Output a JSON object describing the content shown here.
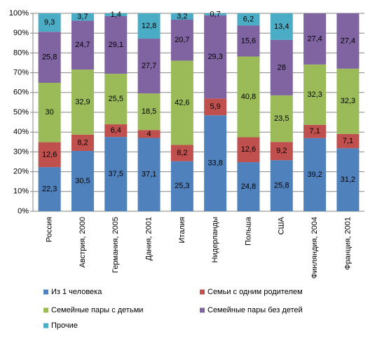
{
  "chart_data": {
    "type": "bar",
    "stack": "percent",
    "categories": [
      "Россия",
      "Австрия, 2000",
      "Германия, 2005",
      "Дания, 2001",
      "Италия",
      "Нидерланды",
      "Польша",
      "США",
      "Финляндия, 2004",
      "Франция, 2001"
    ],
    "series": [
      {
        "name": "Из 1 человека",
        "color": "#4f81bd",
        "values": [
          22.3,
          30.5,
          37.5,
          37.1,
          25.3,
          33.8,
          24.8,
          25.8,
          39.2,
          31.2
        ],
        "value_labels": [
          "22,3",
          "30,5",
          "37,5",
          "37,1",
          "25,3",
          "33,8",
          "24,8",
          "25,8",
          "39,2",
          "31,2"
        ]
      },
      {
        "name": "Семьи с одним родителем",
        "color": "#c0504d",
        "values": [
          12.6,
          8.2,
          6.4,
          4,
          8.2,
          5.9,
          12.6,
          9.2,
          7.1,
          7.1
        ],
        "value_labels": [
          "12,6",
          "8,2",
          "6,4",
          "4",
          "8,2",
          "5,9",
          "12,6",
          "9,2",
          "7,1",
          "7,1"
        ]
      },
      {
        "name": "Семейные пары с детьми",
        "color": "#9bbb59",
        "values": [
          30,
          32.9,
          25.5,
          18.5,
          42.6,
          null,
          40.8,
          23.5,
          32.3,
          32.3
        ],
        "value_labels": [
          "30",
          "32,9",
          "25,5",
          "18,5",
          "42,6",
          null,
          "40,8",
          "23,5",
          "32,3",
          "32,3"
        ]
      },
      {
        "name": "Семейные пары без детей",
        "color": "#8064a2",
        "values": [
          25.8,
          24.7,
          29.1,
          27.7,
          20.7,
          29.3,
          15.6,
          28,
          27.4,
          27.4
        ],
        "value_labels": [
          "25,8",
          "24,7",
          "29,1",
          "27,7",
          "20,7",
          "29,3",
          "15,6",
          "28",
          "27,4",
          "27,4"
        ]
      },
      {
        "name": "Прочие",
        "color": "#4bacc6",
        "values": [
          9.3,
          3.7,
          1.4,
          12.8,
          3.2,
          0.7,
          6.2,
          13.4,
          null,
          null
        ],
        "value_labels": [
          "9,3",
          "3,7",
          "1,4",
          "12,8",
          "3,2",
          "0,7",
          "6,2",
          "13,4",
          null,
          null
        ]
      }
    ],
    "ylim": [
      0,
      100
    ],
    "yticks": [
      {
        "value": 0,
        "label": "0%"
      },
      {
        "value": 10,
        "label": "10%"
      },
      {
        "value": 20,
        "label": "20%"
      },
      {
        "value": 30,
        "label": "30%"
      },
      {
        "value": 40,
        "label": "40%"
      },
      {
        "value": 50,
        "label": "50%"
      },
      {
        "value": 60,
        "label": "60%"
      },
      {
        "value": 70,
        "label": "70%"
      },
      {
        "value": 80,
        "label": "80%"
      },
      {
        "value": 90,
        "label": "90%"
      },
      {
        "value": 100,
        "label": "100%"
      }
    ],
    "grid": true,
    "legend": "bottom"
  }
}
